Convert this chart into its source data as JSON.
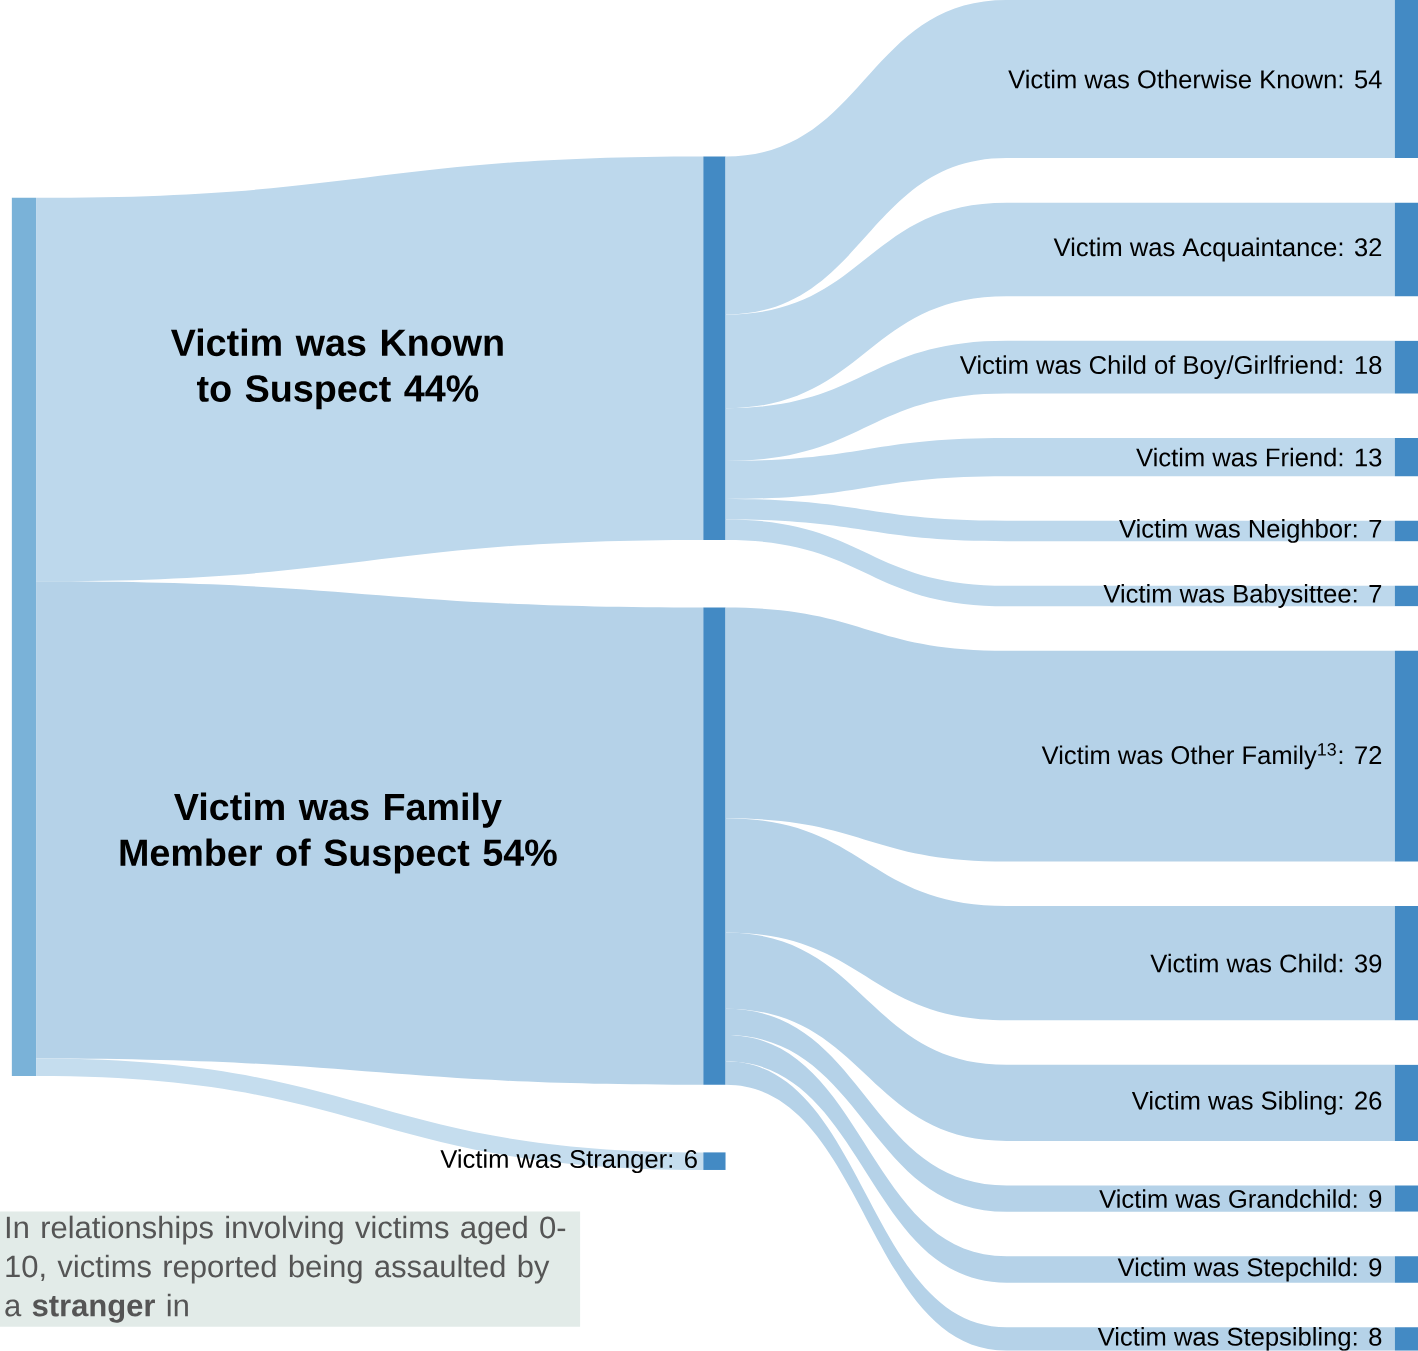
{
  "chart_data": {
    "type": "other",
    "categories": [
      "Victim was Otherwise Known",
      "Victim was Acquaintance",
      "Victim was Child of Boy/Girlfriend",
      "Victim was Friend",
      "Victim was Neighbor",
      "Victim was Babysittee",
      "Victim was Other Family$^{13}$",
      "Victim was Child",
      "Victim was Sibling",
      "Victim was Grandchild",
      "Victim was Stepchild",
      "Victim was Stepsibling",
      "Victim was Stranger"
    ],
    "series": [
      {
        "color": "#bdd8ec",
        "values": [
          54,
          32,
          18,
          13,
          7,
          7,
          null,
          null,
          null,
          null,
          null,
          null,
          null
        ],
        "value_labels": [
          ": 54",
          ": 32",
          ": 18",
          ": 13",
          ": 7",
          ": 7",
          null,
          null,
          null,
          null,
          null,
          null,
          null
        ]
      },
      {
        "color": "#b5d2e8",
        "values": [
          null,
          null,
          null,
          null,
          null,
          null,
          72,
          39,
          26,
          9,
          9,
          8,
          null
        ],
        "value_labels": [
          null,
          null,
          null,
          null,
          null,
          null,
          ": 72",
          ": 39",
          ": 26",
          ": 9",
          ": 9",
          ": 8",
          null
        ]
      },
      {
        "color": "#c5ddee",
        "values": [
          null,
          null,
          null,
          null,
          null,
          null,
          null,
          null,
          null,
          null,
          null,
          null,
          6
        ],
        "value_labels": [
          null,
          null,
          null,
          null,
          null,
          null,
          null,
          null,
          null,
          null,
          null,
          null,
          ":  6"
        ]
      }
    ],
    "annotations": [
      "Victim was Known to Suspect 44%",
      "Victim was Family Member of Suspect 54%",
      "In relationships involving victims aged 0-10, victims reported being assaulted by a **stranger** in"
    ]
  }
}
